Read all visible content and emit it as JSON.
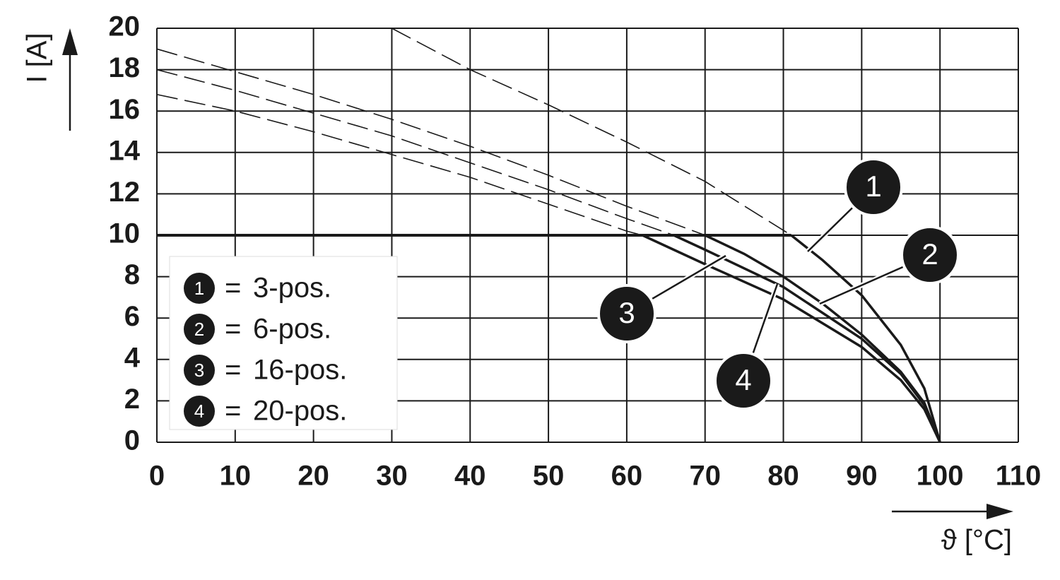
{
  "chart_data": {
    "type": "line",
    "x_label": "ϑ [°C]",
    "y_label": "I [A]",
    "xlim": [
      0,
      110
    ],
    "ylim": [
      0,
      20
    ],
    "xticks": [
      0,
      10,
      20,
      30,
      40,
      50,
      60,
      70,
      80,
      90,
      100,
      110
    ],
    "yticks": [
      0,
      2,
      4,
      6,
      8,
      10,
      12,
      14,
      16,
      18,
      20
    ],
    "grid": true,
    "limit": {
      "value": 10,
      "x": [
        0,
        81
      ]
    },
    "series": [
      {
        "name": "3-pos.",
        "marker": "1",
        "color": "#1a1a1a",
        "x": [
          30,
          40,
          50,
          60,
          70,
          81,
          85,
          90,
          95,
          98,
          100
        ],
        "values": [
          20,
          18,
          16.3,
          14.5,
          12.6,
          10,
          8.8,
          7.1,
          4.7,
          2.6,
          0
        ]
      },
      {
        "name": "6-pos.",
        "marker": "2",
        "color": "#1a1a1a",
        "x": [
          0,
          10,
          20,
          30,
          40,
          50,
          60,
          70,
          75,
          80,
          85,
          90,
          95,
          98,
          100
        ],
        "values": [
          19,
          17.9,
          16.8,
          15.6,
          14.3,
          12.9,
          11.4,
          10,
          9.1,
          8,
          6.7,
          5.2,
          3.4,
          1.9,
          0
        ]
      },
      {
        "name": "16-pos.",
        "marker": "3",
        "color": "#1a1a1a",
        "x": [
          0,
          10,
          20,
          30,
          40,
          50,
          60,
          66,
          70,
          80,
          90,
          95,
          98,
          100
        ],
        "values": [
          18,
          17,
          15.9,
          14.8,
          13.5,
          12.2,
          10.8,
          10,
          9.3,
          7.5,
          5,
          3.3,
          1.8,
          0
        ]
      },
      {
        "name": "20-pos.",
        "marker": "4",
        "color": "#1a1a1a",
        "x": [
          0,
          10,
          20,
          30,
          40,
          50,
          60,
          62,
          70,
          80,
          90,
          95,
          98,
          100
        ],
        "values": [
          16.8,
          16,
          15,
          13.9,
          12.8,
          11.5,
          10.2,
          10,
          8.6,
          6.9,
          4.6,
          3,
          1.6,
          0
        ]
      }
    ]
  }
}
